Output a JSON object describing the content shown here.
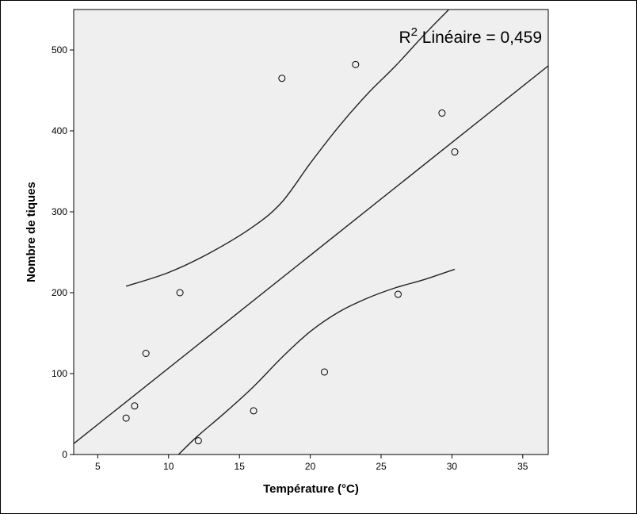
{
  "chart_data": {
    "type": "scatter",
    "xlabel": "Température (°C)",
    "ylabel": "Nombre de tiques",
    "xlim": [
      3.3,
      36.8
    ],
    "ylim": [
      0,
      550
    ],
    "xticks": [
      5,
      10,
      15,
      20,
      25,
      30,
      35
    ],
    "yticks": [
      0,
      100,
      200,
      300,
      400,
      500
    ],
    "grid": false,
    "points": [
      {
        "x": 7.0,
        "y": 45
      },
      {
        "x": 7.6,
        "y": 60
      },
      {
        "x": 8.4,
        "y": 125
      },
      {
        "x": 10.8,
        "y": 200
      },
      {
        "x": 12.1,
        "y": 17
      },
      {
        "x": 16.0,
        "y": 54
      },
      {
        "x": 18.0,
        "y": 465
      },
      {
        "x": 21.0,
        "y": 102
      },
      {
        "x": 23.2,
        "y": 482
      },
      {
        "x": 26.2,
        "y": 198
      },
      {
        "x": 29.3,
        "y": 422
      },
      {
        "x": 30.2,
        "y": 374
      }
    ],
    "fit_line": {
      "slope": 13.94,
      "intercept": -32.6,
      "x_range": [
        3.3,
        36.8
      ]
    },
    "confidence_upper": [
      [
        7.0,
        208
      ],
      [
        10.0,
        225
      ],
      [
        13.0,
        250
      ],
      [
        16.0,
        282
      ],
      [
        18.0,
        312
      ],
      [
        20.0,
        360
      ],
      [
        22.0,
        405
      ],
      [
        24.0,
        445
      ],
      [
        26.0,
        480
      ],
      [
        28.0,
        518
      ],
      [
        29.5,
        545
      ],
      [
        30.2,
        557
      ]
    ],
    "confidence_lower": [
      [
        10.7,
        0
      ],
      [
        12.0,
        22
      ],
      [
        14.0,
        52
      ],
      [
        16.0,
        84
      ],
      [
        18.0,
        120
      ],
      [
        20.0,
        152
      ],
      [
        22.0,
        176
      ],
      [
        24.0,
        193
      ],
      [
        26.0,
        206
      ],
      [
        28.0,
        216
      ],
      [
        30.2,
        229
      ]
    ],
    "annotation": {
      "prefix": "R",
      "superscript": "2",
      "text": " Linéaire = 0,459"
    }
  }
}
